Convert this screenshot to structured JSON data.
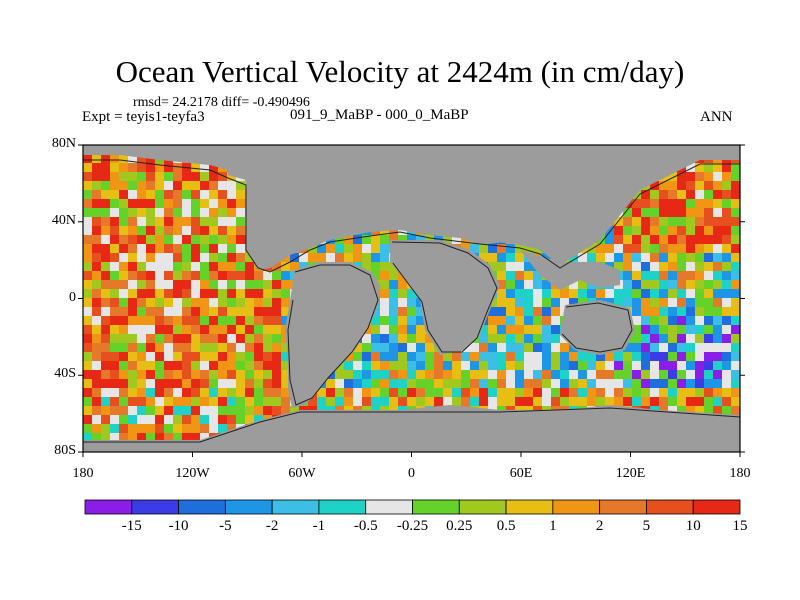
{
  "title": "Ocean Vertical Velocity at 2424m (in cm/day)",
  "stats": "rmsd= 24.2178 diff= -0.490496",
  "experiment": "Expt = teyis1-teyfa3",
  "period": "091_9_MaBP - 000_0_MaBP",
  "season": "ANN",
  "map": {
    "land_color": "#9c9c9c",
    "lat_ticks": [
      "80N",
      "40N",
      "0",
      "40S",
      "80S"
    ],
    "lon_ticks": [
      "180",
      "120W",
      "60W",
      "0",
      "60E",
      "120E",
      "180"
    ]
  },
  "colorbar": {
    "colors": [
      "#8a1ee6",
      "#3c3ce6",
      "#1e6edc",
      "#1e96e6",
      "#3cbee6",
      "#1ed2c8",
      "#e6e6e6",
      "#64d228",
      "#a0c81e",
      "#e6be14",
      "#f09614",
      "#e6782a",
      "#e6501e",
      "#e62814"
    ],
    "labels": [
      "-15",
      "-10",
      "-5",
      "-2",
      "-1",
      "-0.5",
      "-0.25",
      "0.25",
      "0.5",
      "1",
      "2",
      "5",
      "10",
      "15"
    ]
  }
}
